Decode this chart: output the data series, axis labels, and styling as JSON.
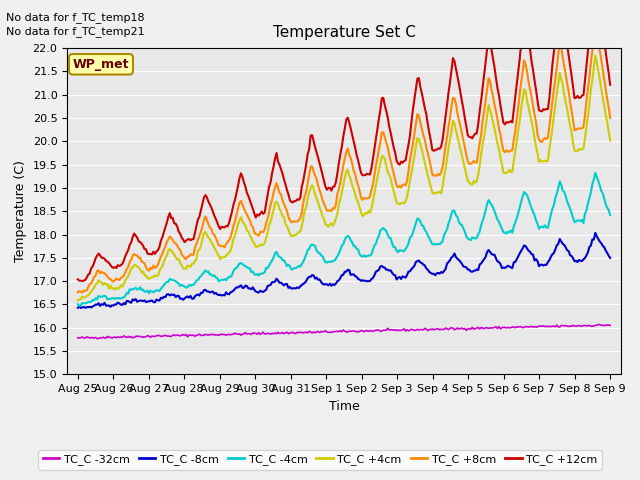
{
  "title": "Temperature Set C",
  "xlabel": "Time",
  "ylabel": "Temperature (C)",
  "ylim": [
    15.0,
    22.0
  ],
  "yticks": [
    15.0,
    15.5,
    16.0,
    16.5,
    17.0,
    17.5,
    18.0,
    18.5,
    19.0,
    19.5,
    20.0,
    20.5,
    21.0,
    21.5,
    22.0
  ],
  "xtick_positions": [
    0,
    1,
    2,
    3,
    4,
    5,
    6,
    7,
    8,
    9,
    10,
    11,
    12,
    13,
    14,
    15
  ],
  "xtick_labels": [
    "Aug 25",
    "Aug 26",
    "Aug 27",
    "Aug 28",
    "Aug 29",
    "Aug 30",
    "Aug 31",
    "Sep 1",
    "Sep 2",
    "Sep 3",
    "Sep 4",
    "Sep 5",
    "Sep 6",
    "Sep 7",
    "Sep 8",
    "Sep 9"
  ],
  "nodata_text1": "No data for f_TC_temp18",
  "nodata_text2": "No data for f_TC_temp21",
  "wp_met_label": "WP_met",
  "line_colors": [
    "#cc00cc",
    "#0000cc",
    "#00cccc",
    "#cccc00",
    "#ff8800",
    "#cc0000"
  ],
  "line_labels": [
    "TC_C -32cm",
    "TC_C -8cm",
    "TC_C -4cm",
    "TC_C +4cm",
    "TC_C +8cm",
    "TC_C +12cm"
  ],
  "line_widths": [
    1.2,
    1.5,
    1.5,
    1.5,
    1.5,
    1.5
  ],
  "fig_facecolor": "#f0f0f0",
  "ax_facecolor": "#e8e8e8",
  "grid_color": "#ffffff"
}
